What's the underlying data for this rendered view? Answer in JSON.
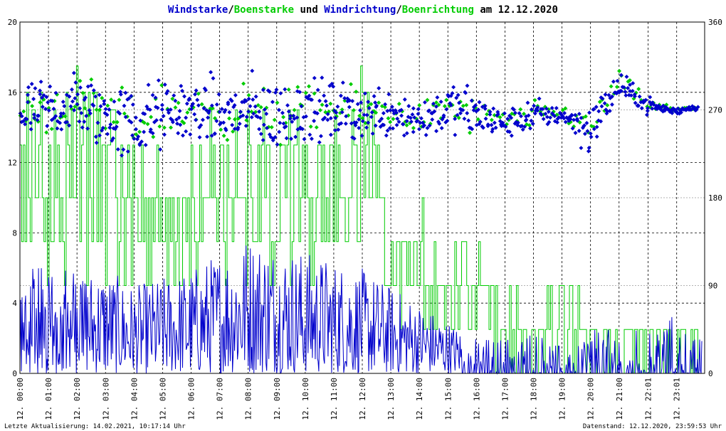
{
  "title": {
    "part1": "Windstarke",
    "sep1": "/",
    "part2": "Boenstarke",
    "part3": " und ",
    "part4": "Windrichtung",
    "sep2": "/",
    "part5": "Boenrichtung",
    "part6": " am 12.12.2020"
  },
  "footer": {
    "left": "Letzte Aktualisierung: 14.02.2021, 10:17:14 Uhr",
    "right": "Datenstand: 12.12.2020, 23:59:53 Uhr"
  },
  "colors": {
    "wind": "#0000cc",
    "gust": "#00cc00",
    "background": "#ffffff",
    "grid": "#000000"
  },
  "chart_data": {
    "type": "line",
    "title": "Windstarke/Boenstarke und Windrichtung/Boenrichtung am 12.12.2020",
    "xlim": [
      "12.12.2020 00:00",
      "12.12.2020 23:59"
    ],
    "x_ticks": [
      "12. 00:00",
      "12. 01:00",
      "12. 02:00",
      "12. 03:00",
      "12. 04:00",
      "12. 05:00",
      "12. 06:00",
      "12. 07:00",
      "12. 08:00",
      "12. 09:00",
      "12. 10:00",
      "12. 11:00",
      "12. 12:00",
      "12. 13:00",
      "12. 14:00",
      "12. 15:00",
      "12. 16:00",
      "12. 17:00",
      "12. 18:00",
      "12. 19:00",
      "12. 20:00",
      "12. 21:00",
      "12. 22:01",
      "12. 23:01"
    ],
    "x_tick_hours": [
      0,
      1,
      2,
      3,
      4,
      5,
      6,
      7,
      8,
      9,
      10,
      11,
      12,
      13,
      14,
      15,
      16,
      17,
      18,
      19,
      20,
      21,
      22.02,
      23.02
    ],
    "y_left": {
      "lim": [
        0,
        20
      ],
      "ticks": [
        0,
        4,
        8,
        12,
        16,
        20
      ]
    },
    "y_right": {
      "lim": [
        0,
        360
      ],
      "ticks": [
        0,
        90,
        180,
        270,
        360
      ]
    },
    "grid": true,
    "series": [
      {
        "name": "Windstarke",
        "axis": "left",
        "style": "line",
        "color": "#0000cc",
        "hours": [
          0,
          1,
          2,
          3,
          4,
          5,
          6,
          7,
          8,
          9,
          10,
          11,
          12,
          13,
          14,
          15,
          16,
          17,
          18,
          19,
          20,
          21,
          22,
          23,
          23.5
        ],
        "values_min": [
          0,
          0,
          0,
          0,
          0,
          0,
          0,
          0,
          0,
          0,
          0,
          0,
          0,
          0,
          0,
          0,
          0,
          0,
          0,
          0,
          0,
          0,
          0,
          0,
          0
        ],
        "values_max": [
          5.5,
          6.5,
          6,
          6,
          5,
          5.5,
          6,
          7,
          8,
          7.5,
          7,
          6.5,
          6,
          5,
          4,
          3,
          2,
          2,
          2.5,
          1.5,
          2.5,
          2.5,
          2.5,
          3.5,
          2
        ]
      },
      {
        "name": "Boenstarke",
        "axis": "left",
        "style": "step",
        "color": "#00cc00",
        "hours": [
          0,
          1,
          2,
          3,
          4,
          5,
          6,
          7,
          8,
          9,
          10,
          11,
          12,
          13,
          14,
          15,
          16,
          17,
          18,
          19,
          20,
          21,
          22,
          23,
          23.5
        ],
        "values_min": [
          5,
          5,
          5,
          5,
          5,
          5,
          5,
          5,
          5,
          5,
          5,
          5,
          5,
          2.5,
          2.5,
          2.5,
          2.5,
          0,
          0,
          0,
          0,
          0,
          0,
          0,
          0
        ],
        "values_max": [
          17.5,
          16,
          17.5,
          16,
          13,
          13,
          15,
          15,
          16,
          16,
          15,
          15,
          17.5,
          10,
          10,
          7.5,
          7.5,
          5,
          5,
          5,
          5,
          2.5,
          5,
          2.5,
          2.5
        ]
      },
      {
        "name": "Windrichtung",
        "axis": "right",
        "style": "markers",
        "color": "#0000cc",
        "hours": [
          0,
          1,
          2,
          3,
          4,
          5,
          6,
          7,
          8,
          9,
          10,
          11,
          12,
          13,
          14,
          15,
          16,
          17,
          18,
          19,
          20,
          21,
          22,
          23,
          23.5
        ],
        "values_mean": [
          265,
          270,
          275,
          262,
          255,
          265,
          270,
          265,
          268,
          262,
          270,
          268,
          265,
          270,
          260,
          272,
          265,
          255,
          265,
          265,
          250,
          295,
          275,
          268,
          272
        ],
        "values_spread": [
          45,
          45,
          50,
          50,
          60,
          50,
          45,
          50,
          50,
          55,
          45,
          45,
          40,
          40,
          35,
          35,
          40,
          20,
          25,
          12,
          40,
          20,
          12,
          6,
          4
        ]
      },
      {
        "name": "Boenrichtung",
        "axis": "right",
        "style": "markers",
        "color": "#00cc00",
        "hours": [
          0,
          1,
          2,
          3,
          4,
          5,
          6,
          7,
          8,
          9,
          10,
          11,
          12,
          13,
          14,
          15,
          16,
          17,
          18,
          19,
          20,
          21,
          22,
          23,
          23.5
        ],
        "values_mean": [
          268,
          272,
          275,
          265,
          258,
          268,
          270,
          268,
          268,
          265,
          270,
          270,
          268,
          270,
          262,
          272,
          262,
          258,
          265,
          268,
          252,
          300,
          275,
          270,
          272
        ],
        "values_spread": [
          35,
          35,
          40,
          40,
          45,
          40,
          35,
          40,
          40,
          45,
          35,
          35,
          30,
          30,
          25,
          25,
          30,
          15,
          20,
          10,
          30,
          15,
          10,
          5,
          3
        ]
      }
    ]
  }
}
